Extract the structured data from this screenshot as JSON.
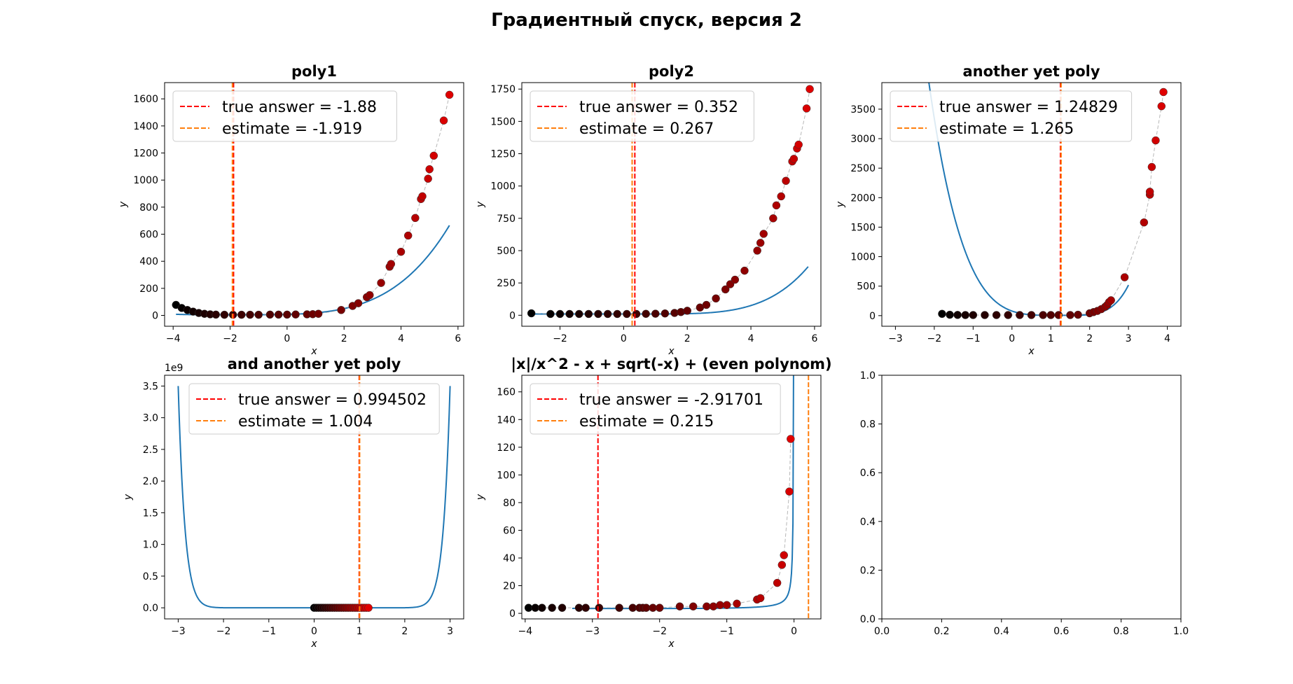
{
  "figure": {
    "suptitle": "Градиентный спуск, версия 2"
  },
  "colors": {
    "curve": "#1f77b4",
    "true_answer_line": "#ff0000",
    "estimate_line": "#ff7f0e",
    "path_line": "#999999",
    "point_fill": "#e00000",
    "start_point": "#000000"
  },
  "legend_labels": {
    "true": "true answer",
    "estimate": "estimate"
  },
  "chart_data": [
    {
      "type": "line",
      "title": "poly1",
      "xlabel": "x",
      "ylabel": "y",
      "xlim": [
        -4.3,
        6.2
      ],
      "ylim": [
        -80,
        1720
      ],
      "xticks": [
        -4,
        -2,
        0,
        2,
        4,
        6
      ],
      "yticks": [
        0,
        200,
        400,
        600,
        800,
        1000,
        1200,
        1400,
        1600
      ],
      "legend_position": "upper-left",
      "true_answer": -1.88,
      "estimate": -1.919,
      "true_answer_label": "-1.88",
      "estimate_label": "-1.919",
      "curve": {
        "x_range": [
          -3.9,
          5.7
        ],
        "expr": "0.2*(x+1.88)**4 + 5"
      },
      "points": [
        [
          -3.9,
          78
        ],
        [
          -3.7,
          55
        ],
        [
          -3.5,
          40
        ],
        [
          -3.3,
          28
        ],
        [
          -3.1,
          18
        ],
        [
          -2.9,
          12
        ],
        [
          -2.7,
          8
        ],
        [
          -2.5,
          6
        ],
        [
          -2.2,
          5
        ],
        [
          -1.9,
          5
        ],
        [
          -1.6,
          5
        ],
        [
          -1.3,
          5
        ],
        [
          -1.0,
          5
        ],
        [
          -0.6,
          6
        ],
        [
          -0.3,
          6
        ],
        [
          0.0,
          6
        ],
        [
          0.3,
          7
        ],
        [
          0.7,
          8
        ],
        [
          0.9,
          9
        ],
        [
          1.1,
          12
        ],
        [
          1.9,
          40
        ],
        [
          2.3,
          70
        ],
        [
          2.5,
          90
        ],
        [
          2.8,
          135
        ],
        [
          2.9,
          150
        ],
        [
          3.3,
          240
        ],
        [
          3.6,
          360
        ],
        [
          3.65,
          380
        ],
        [
          4.0,
          470
        ],
        [
          4.25,
          590
        ],
        [
          4.5,
          720
        ],
        [
          4.7,
          860
        ],
        [
          4.75,
          880
        ],
        [
          4.95,
          1010
        ],
        [
          5.0,
          1080
        ],
        [
          5.15,
          1180
        ],
        [
          5.5,
          1440
        ],
        [
          5.7,
          1630
        ]
      ]
    },
    {
      "type": "line",
      "title": "poly2",
      "xlabel": "x",
      "ylabel": "y",
      "xlim": [
        -3.2,
        6.2
      ],
      "ylim": [
        -85,
        1800
      ],
      "xticks": [
        -2,
        0,
        2,
        4,
        6
      ],
      "yticks": [
        0,
        250,
        500,
        750,
        1000,
        1250,
        1500,
        1750
      ],
      "legend_position": "upper-left",
      "true_answer": 0.352,
      "estimate": 0.267,
      "true_answer_label": "0.352",
      "estimate_label": "0.267",
      "curve": {
        "x_range": [
          -2.9,
          5.8
        ],
        "expr": "0.25*Math.max(0,x-0.352)**4.3 + 10"
      },
      "points": [
        [
          -2.9,
          15
        ],
        [
          -2.3,
          10
        ],
        [
          -2.0,
          10
        ],
        [
          -1.7,
          10
        ],
        [
          -1.4,
          10
        ],
        [
          -1.1,
          10
        ],
        [
          -0.8,
          10
        ],
        [
          -0.5,
          10
        ],
        [
          -0.2,
          10
        ],
        [
          0.1,
          10
        ],
        [
          0.4,
          10
        ],
        [
          0.7,
          11
        ],
        [
          1.0,
          12
        ],
        [
          1.3,
          14
        ],
        [
          1.6,
          18
        ],
        [
          1.8,
          25
        ],
        [
          2.0,
          35
        ],
        [
          2.4,
          60
        ],
        [
          2.6,
          80
        ],
        [
          2.9,
          130
        ],
        [
          3.2,
          200
        ],
        [
          3.35,
          240
        ],
        [
          3.5,
          275
        ],
        [
          3.8,
          345
        ],
        [
          4.2,
          500
        ],
        [
          4.3,
          560
        ],
        [
          4.4,
          630
        ],
        [
          4.7,
          750
        ],
        [
          4.8,
          850
        ],
        [
          4.95,
          920
        ],
        [
          5.1,
          1040
        ],
        [
          5.3,
          1190
        ],
        [
          5.35,
          1210
        ],
        [
          5.45,
          1290
        ],
        [
          5.5,
          1320
        ],
        [
          5.75,
          1600
        ],
        [
          5.85,
          1750
        ]
      ]
    },
    {
      "type": "line",
      "title": "another yet poly",
      "xlabel": "x",
      "ylabel": "y",
      "xlim": [
        -3.35,
        4.35
      ],
      "ylim": [
        -180,
        3950
      ],
      "xticks": [
        -3,
        -2,
        -1,
        0,
        1,
        2,
        3,
        4
      ],
      "yticks": [
        0,
        500,
        1000,
        1500,
        2000,
        2500,
        3000,
        3500
      ],
      "legend_position": "upper-left",
      "true_answer": 1.24829,
      "estimate": 1.265,
      "true_answer_label": "1.24829",
      "estimate_label": "1.265",
      "curve": {
        "x_range": [
          -3.0,
          3.0
        ],
        "expr": "30*(x-1.248)**4 + 14*Math.max(0,x-1.248)**4*(x-1.248) + 5"
      },
      "points": [
        [
          -1.8,
          30
        ],
        [
          -1.6,
          15
        ],
        [
          -1.4,
          12
        ],
        [
          -1.2,
          10
        ],
        [
          -1.0,
          10
        ],
        [
          -0.7,
          10
        ],
        [
          -0.4,
          10
        ],
        [
          -0.1,
          10
        ],
        [
          0.2,
          10
        ],
        [
          0.5,
          10
        ],
        [
          0.8,
          10
        ],
        [
          1.0,
          10
        ],
        [
          1.2,
          10
        ],
        [
          1.5,
          10
        ],
        [
          1.7,
          15
        ],
        [
          2.0,
          40
        ],
        [
          2.1,
          60
        ],
        [
          2.2,
          80
        ],
        [
          2.3,
          110
        ],
        [
          2.4,
          150
        ],
        [
          2.45,
          180
        ],
        [
          2.5,
          230
        ],
        [
          2.55,
          260
        ],
        [
          2.9,
          650
        ],
        [
          3.4,
          1580
        ],
        [
          3.55,
          2050
        ],
        [
          3.55,
          2100
        ],
        [
          3.6,
          2520
        ],
        [
          3.7,
          2970
        ],
        [
          3.85,
          3550
        ],
        [
          3.9,
          3790
        ]
      ]
    },
    {
      "type": "line",
      "title": "and another yet poly",
      "xlabel": "x",
      "ylabel": "y",
      "offset_text": "1e9",
      "xlim": [
        -3.3,
        3.3
      ],
      "ylim": [
        -175000000.0,
        3670000000.0
      ],
      "xticks": [
        -3,
        -2,
        -1,
        0,
        1,
        2,
        3
      ],
      "yticks": [
        0,
        500000000.0,
        1000000000.0,
        1500000000.0,
        2000000000.0,
        2500000000.0,
        3000000000.0,
        3500000000.0
      ],
      "ytick_labels": [
        "0.0",
        "0.5",
        "1.0",
        "1.5",
        "2.0",
        "2.5",
        "3.0",
        "3.5"
      ],
      "legend_position": "upper-center",
      "true_answer": 0.994502,
      "estimate": 1.004,
      "true_answer_label": "0.994502",
      "estimate_label": "1.004",
      "curve": {
        "x_range": [
          -3.0,
          3.0
        ],
        "expr": "3.5e9*Math.pow(x/3, 20)"
      },
      "points": [
        [
          0.0,
          0
        ],
        [
          0.05,
          0
        ],
        [
          0.1,
          0
        ],
        [
          0.15,
          0
        ],
        [
          0.2,
          0
        ],
        [
          0.25,
          0
        ],
        [
          0.3,
          0
        ],
        [
          0.35,
          0
        ],
        [
          0.4,
          0
        ],
        [
          0.45,
          0
        ],
        [
          0.5,
          0
        ],
        [
          0.55,
          0
        ],
        [
          0.6,
          0
        ],
        [
          0.65,
          0
        ],
        [
          0.7,
          0
        ],
        [
          0.75,
          0
        ],
        [
          0.8,
          0
        ],
        [
          0.85,
          0
        ],
        [
          0.9,
          0
        ],
        [
          0.95,
          0
        ],
        [
          1.0,
          0
        ],
        [
          1.05,
          0
        ],
        [
          1.1,
          0
        ],
        [
          1.15,
          0
        ],
        [
          1.2,
          0
        ]
      ]
    },
    {
      "type": "line",
      "title": "|x|/x^2 - x + sqrt(-x) + (even polynom)",
      "xlabel": "x",
      "ylabel": "y",
      "xlim": [
        -4.05,
        0.4
      ],
      "ylim": [
        -4,
        172
      ],
      "xticks": [
        -4,
        -3,
        -2,
        -1,
        0
      ],
      "yticks": [
        0,
        20,
        40,
        60,
        80,
        100,
        120,
        140,
        160
      ],
      "legend_position": "upper-left",
      "true_answer": -2.91701,
      "estimate": 0.215,
      "true_answer_label": "-2.91701",
      "estimate_label": "0.215",
      "curve": {
        "x_range": [
          -3.3,
          -0.005
        ],
        "expr": "1/Math.abs(x) + 2.5 + 0.3*Math.sqrt(-x) + 0.02*x*x"
      },
      "points": [
        [
          -3.95,
          4
        ],
        [
          -3.85,
          4
        ],
        [
          -3.75,
          4
        ],
        [
          -3.6,
          4
        ],
        [
          -3.45,
          4
        ],
        [
          -3.2,
          4
        ],
        [
          -3.1,
          4
        ],
        [
          -2.9,
          4
        ],
        [
          -2.6,
          4
        ],
        [
          -2.4,
          4
        ],
        [
          -2.3,
          4
        ],
        [
          -2.25,
          4
        ],
        [
          -2.2,
          4
        ],
        [
          -2.1,
          4
        ],
        [
          -2.0,
          4
        ],
        [
          -1.7,
          5
        ],
        [
          -1.5,
          5
        ],
        [
          -1.3,
          5
        ],
        [
          -1.2,
          5
        ],
        [
          -1.1,
          6
        ],
        [
          -1.0,
          6
        ],
        [
          -0.85,
          7
        ],
        [
          -0.55,
          10
        ],
        [
          -0.5,
          11
        ],
        [
          -0.25,
          22
        ],
        [
          -0.18,
          35
        ],
        [
          -0.15,
          42
        ],
        [
          -0.07,
          88
        ],
        [
          -0.05,
          126
        ]
      ]
    },
    {
      "type": "line",
      "title": "",
      "xlim": [
        0.0,
        1.0
      ],
      "ylim": [
        0.0,
        1.0
      ],
      "xticks": [
        0.0,
        0.2,
        0.4,
        0.6,
        0.8,
        1.0
      ],
      "yticks": [
        0.0,
        0.2,
        0.4,
        0.6,
        0.8,
        1.0
      ],
      "xtick_labels": [
        "0.0",
        "0.2",
        "0.4",
        "0.6",
        "0.8",
        "1.0"
      ],
      "ytick_labels": [
        "0.0",
        "0.2",
        "0.4",
        "0.6",
        "0.8",
        "1.0"
      ],
      "empty": true
    }
  ]
}
